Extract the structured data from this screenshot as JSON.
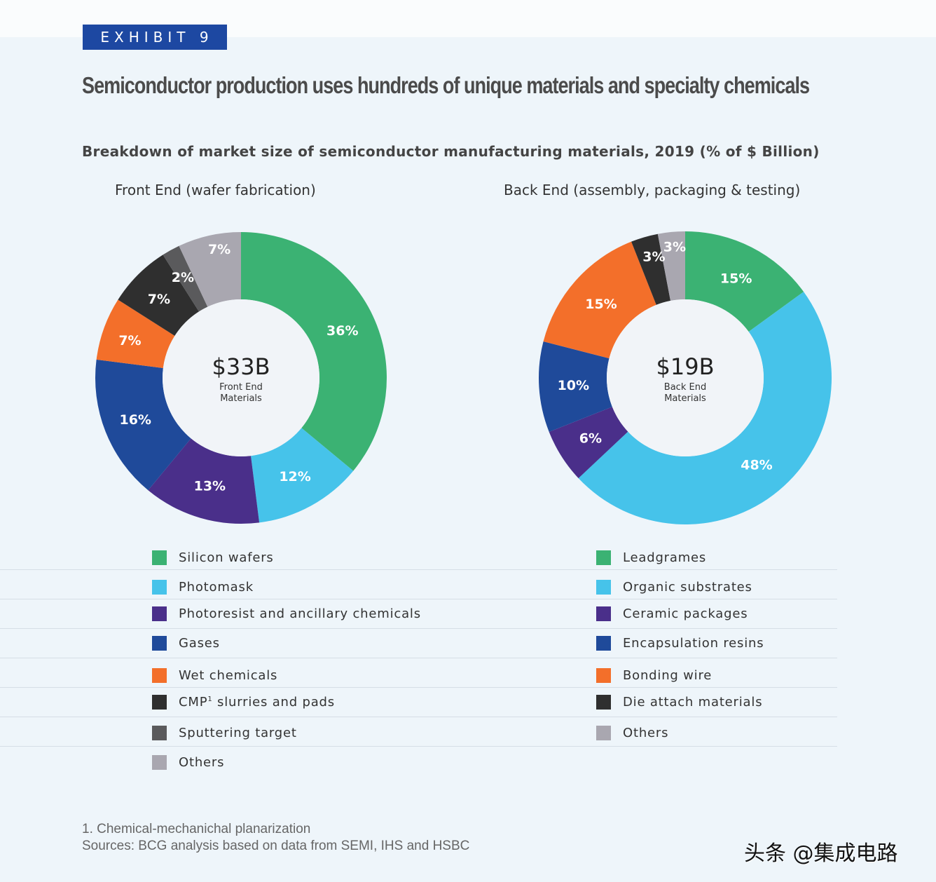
{
  "badge": "EXHIBIT 9",
  "title": "Semiconductor production uses hundreds of unique materials and specialty chemicals",
  "subtitle": "Breakdown of market size of semiconductor manufacturing materials, 2019 (% of $ Billion)",
  "colors": {
    "green": "#3bb273",
    "light_blue": "#46c3ea",
    "purple": "#4a2f8a",
    "dark_blue": "#1f4a9a",
    "orange": "#f36f2a",
    "black": "#2f2f2f",
    "dark_gray": "#5a5a5c",
    "light_gray": "#a9a7b0",
    "badge": "#1d48a2"
  },
  "chart_data": [
    {
      "type": "pie",
      "variant": "donut",
      "title": "Front End (wafer fabrication)",
      "center_value": "$33B",
      "center_label_line1": "Front End",
      "center_label_line2": "Materials",
      "start": "top",
      "direction": "clockwise",
      "categories": [
        "Silicon wafers",
        "Photomask",
        "Photoresist and ancillary chemicals",
        "Gases",
        "Wet chemicals",
        "CMP¹ slurries and pads",
        "Sputtering target",
        "Others"
      ],
      "values": [
        36,
        12,
        13,
        16,
        7,
        7,
        2,
        7
      ],
      "labels": [
        "36%",
        "12%",
        "13%",
        "16%",
        "7%",
        "7%",
        "2%",
        "7%"
      ],
      "colors": [
        "#3bb273",
        "#46c3ea",
        "#4a2f8a",
        "#1f4a9a",
        "#f36f2a",
        "#2f2f2f",
        "#5a5a5c",
        "#a9a7b0"
      ],
      "legend_position": "bottom"
    },
    {
      "type": "pie",
      "variant": "donut",
      "title": "Back End (assembly, packaging & testing)",
      "center_value": "$19B",
      "center_label_line1": "Back End",
      "center_label_line2": "Materials",
      "start": "top",
      "direction": "clockwise",
      "categories": [
        "Leadgrames",
        "Organic substrates",
        "Ceramic packages",
        "Encapsulation resins",
        "Bonding wire",
        "Die attach materials",
        "Others"
      ],
      "values": [
        15,
        48,
        6,
        10,
        15,
        3,
        3
      ],
      "labels": [
        "15%",
        "48%",
        "6%",
        "10%",
        "15%",
        "3%",
        "3%"
      ],
      "colors": [
        "#3bb273",
        "#46c3ea",
        "#4a2f8a",
        "#1f4a9a",
        "#f36f2a",
        "#2f2f2f",
        "#a9a7b0"
      ],
      "legend_position": "bottom"
    }
  ],
  "legend": {
    "front": [
      {
        "label": "Silicon wafers",
        "color": "#3bb273"
      },
      {
        "label": "Photomask",
        "color": "#46c3ea"
      },
      {
        "label": "Photoresist and ancillary chemicals",
        "color": "#4a2f8a"
      },
      {
        "label": "Gases",
        "color": "#1f4a9a"
      },
      {
        "label": "Wet chemicals",
        "color": "#f36f2a"
      },
      {
        "label": "CMP",
        "sup": "1",
        "rest": " slurries and pads",
        "color": "#2f2f2f"
      },
      {
        "label": "Sputtering target",
        "color": "#5a5a5c"
      },
      {
        "label": "Others",
        "color": "#a9a7b0"
      }
    ],
    "back": [
      {
        "label": "Leadgrames",
        "color": "#3bb273"
      },
      {
        "label": "Organic substrates",
        "color": "#46c3ea"
      },
      {
        "label": "Ceramic packages",
        "color": "#4a2f8a"
      },
      {
        "label": "Encapsulation resins",
        "color": "#1f4a9a"
      },
      {
        "label": "Bonding wire",
        "color": "#f36f2a"
      },
      {
        "label": "Die attach materials",
        "color": "#2f2f2f"
      },
      {
        "label": "Others",
        "color": "#a9a7b0"
      }
    ]
  },
  "footnotes": {
    "note1": "1. Chemical-mechanichal planarization",
    "sources": "Sources: BCG analysis based on data from SEMI, IHS and HSBC"
  },
  "watermark": "头条 @集成电路"
}
